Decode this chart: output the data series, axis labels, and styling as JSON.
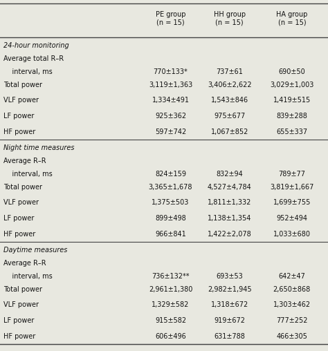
{
  "col_headers": [
    "PE group\n(n = 15)",
    "HH group\n(n = 15)",
    "HA group\n(n = 15)"
  ],
  "sections": [
    {
      "section_title": "24-hour monitoring",
      "rows": [
        {
          "label1": "Average total R–R",
          "label2": "    interval, ms",
          "pe": "770±133*",
          "hh": "737±61",
          "ha": "690±50",
          "two_line": true
        },
        {
          "label1": "Total power",
          "label2": "",
          "pe": "3,119±1,363",
          "hh": "3,406±2,622",
          "ha": "3,029±1,003",
          "two_line": false
        },
        {
          "label1": "VLF power",
          "label2": "",
          "pe": "1,334±491",
          "hh": "1,543±846",
          "ha": "1,419±515",
          "two_line": false
        },
        {
          "label1": "LF power",
          "label2": "",
          "pe": "925±362",
          "hh": "975±677",
          "ha": "839±288",
          "two_line": false
        },
        {
          "label1": "HF power",
          "label2": "",
          "pe": "597±742",
          "hh": "1,067±852",
          "ha": "655±337",
          "two_line": false
        }
      ]
    },
    {
      "section_title": "Night time measures",
      "rows": [
        {
          "label1": "Average R–R",
          "label2": "    interval, ms",
          "pe": "824±159",
          "hh": "832±94",
          "ha": "789±77",
          "two_line": true
        },
        {
          "label1": "Total power",
          "label2": "",
          "pe": "3,365±1,678",
          "hh": "4,527±4,784",
          "ha": "3,819±1,667",
          "two_line": false
        },
        {
          "label1": "VLF power",
          "label2": "",
          "pe": "1,375±503",
          "hh": "1,811±1,332",
          "ha": "1,699±755",
          "two_line": false
        },
        {
          "label1": "LF power",
          "label2": "",
          "pe": "899±498",
          "hh": "1,138±1,354",
          "ha": "952±494",
          "two_line": false
        },
        {
          "label1": "HF power",
          "label2": "",
          "pe": "966±841",
          "hh": "1,422±2,078",
          "ha": "1,033±680",
          "two_line": false
        }
      ]
    },
    {
      "section_title": "Daytime measures",
      "rows": [
        {
          "label1": "Average R–R",
          "label2": "    interval, ms",
          "pe": "736±132**",
          "hh": "693±53",
          "ha": "642±47",
          "two_line": true
        },
        {
          "label1": "Total power",
          "label2": "",
          "pe": "2,961±1,380",
          "hh": "2,982±1,945",
          "ha": "2,650±868",
          "two_line": false
        },
        {
          "label1": "VLF power",
          "label2": "",
          "pe": "1,329±582",
          "hh": "1,318±672",
          "ha": "1,303±462",
          "two_line": false
        },
        {
          "label1": "LF power",
          "label2": "",
          "pe": "915±582",
          "hh": "919±672",
          "ha": "777±252",
          "two_line": false
        },
        {
          "label1": "HF power",
          "label2": "",
          "pe": "606±496",
          "hh": "631±788",
          "ha": "466±305",
          "two_line": false
        }
      ]
    }
  ],
  "bg_color": "#e8e8e0",
  "text_color": "#111111",
  "line_color": "#444444",
  "fontsize": 7.0,
  "header_fontsize": 7.0
}
